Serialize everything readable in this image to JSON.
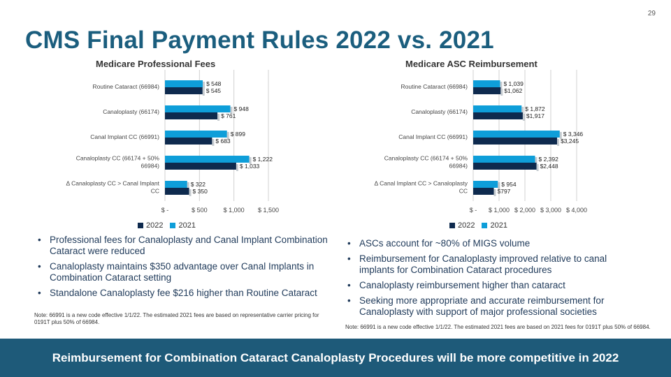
{
  "page_number": "29",
  "title": "CMS Final Payment Rules 2022 vs. 2021",
  "colors": {
    "series_2022": "#0e2a4e",
    "series_2021": "#0e9ed9",
    "footer_bg": "#1e5a79",
    "title": "#1b5e7e"
  },
  "chart_data": [
    {
      "type": "bar",
      "orientation": "horizontal",
      "title": "Medicare Professional Fees",
      "categories": [
        [
          "Routine Cataract (66984)"
        ],
        [
          "Canaloplasty (66174)"
        ],
        [
          "Canal Implant CC (66991)"
        ],
        [
          "Canaloplasty CC (66174 + 50%",
          "66984)"
        ],
        [
          "Δ Canaloplasty CC > Canal Implant",
          "CC"
        ]
      ],
      "series": [
        {
          "name": "2022",
          "color": "#0e2a4e",
          "values": [
            545,
            761,
            683,
            1033,
            350
          ],
          "labels": [
            "$ 545",
            "$ 761",
            "$ 683",
            "$ 1,033",
            "$ 350"
          ]
        },
        {
          "name": "2021",
          "color": "#0e9ed9",
          "values": [
            548,
            948,
            899,
            1222,
            322
          ],
          "labels": [
            "$ 548",
            "$ 948",
            "$ 899",
            "$ 1,222",
            "$ 322"
          ]
        }
      ],
      "xlim": [
        0,
        1500
      ],
      "ticks": [
        0,
        500,
        1000,
        1500
      ],
      "tick_labels": [
        "$ -",
        "$ 500",
        "$ 1,000",
        "$ 1,500"
      ],
      "grid": true,
      "legend": "bottom"
    },
    {
      "type": "bar",
      "orientation": "horizontal",
      "title": "Medicare ASC Reimbursement",
      "categories": [
        [
          "Routine Cataract  (66984)"
        ],
        [
          "Canaloplasty  (66174)"
        ],
        [
          "Canal Implant CC (66991)"
        ],
        [
          "Canaloplasty CC (66174 + 50%",
          "66984)"
        ],
        [
          "Δ Canal Implant CC > Canaloplasty",
          "CC"
        ]
      ],
      "series": [
        {
          "name": "2022",
          "color": "#0e2a4e",
          "values": [
            1062,
            1917,
            3245,
            2448,
            797
          ],
          "labels": [
            "$1,062",
            "$1,917",
            "$3,245",
            "$2,448",
            "$797"
          ]
        },
        {
          "name": "2021",
          "color": "#0e9ed9",
          "values": [
            1039,
            1872,
            3346,
            2392,
            954
          ],
          "labels": [
            "$ 1,039",
            "$ 1,872",
            "$ 3,346",
            "$ 2,392",
            "$ 954"
          ]
        }
      ],
      "xlim": [
        0,
        4000
      ],
      "ticks": [
        0,
        1000,
        2000,
        3000,
        4000
      ],
      "tick_labels": [
        "$ -",
        "$ 1,000",
        "$ 2,000",
        "$ 3,000",
        "$ 4,000"
      ],
      "grid": true,
      "legend": "bottom"
    }
  ],
  "legend": {
    "label_2022": "2022",
    "label_2021": "2021"
  },
  "bullets_left": [
    "Professional fees for Canaloplasty and Canal Implant Combination Cataract were reduced",
    "Canaloplasty maintains $350 advantage over Canal Implants in Combination Cataract setting",
    "Standalone Canaloplasty fee $216 higher than Routine Cataract"
  ],
  "note_left": "Note: 66991 is a new code effective 1/1/22.  The estimated 2021 fees are based on representative carrier pricing for 0191T plus 50% of 66984.",
  "bullets_right": [
    "ASCs account for ~80% of MIGS volume",
    "Reimbursement for Canaloplasty improved relative to canal implants for Combination Cataract procedures",
    "Canaloplasty reimbursement higher than cataract",
    "Seeking more appropriate and accurate reimbursement for Canaloplasty with support of major professional societies"
  ],
  "note_right": "Note: 66991 is a new code effective 1/1/22.  The estimated 2021 fees are based on 2021 fees for 0191T plus 50% of 66984.",
  "footer": "Reimbursement for Combination Cataract Canaloplasty Procedures will be more competitive in 2022"
}
